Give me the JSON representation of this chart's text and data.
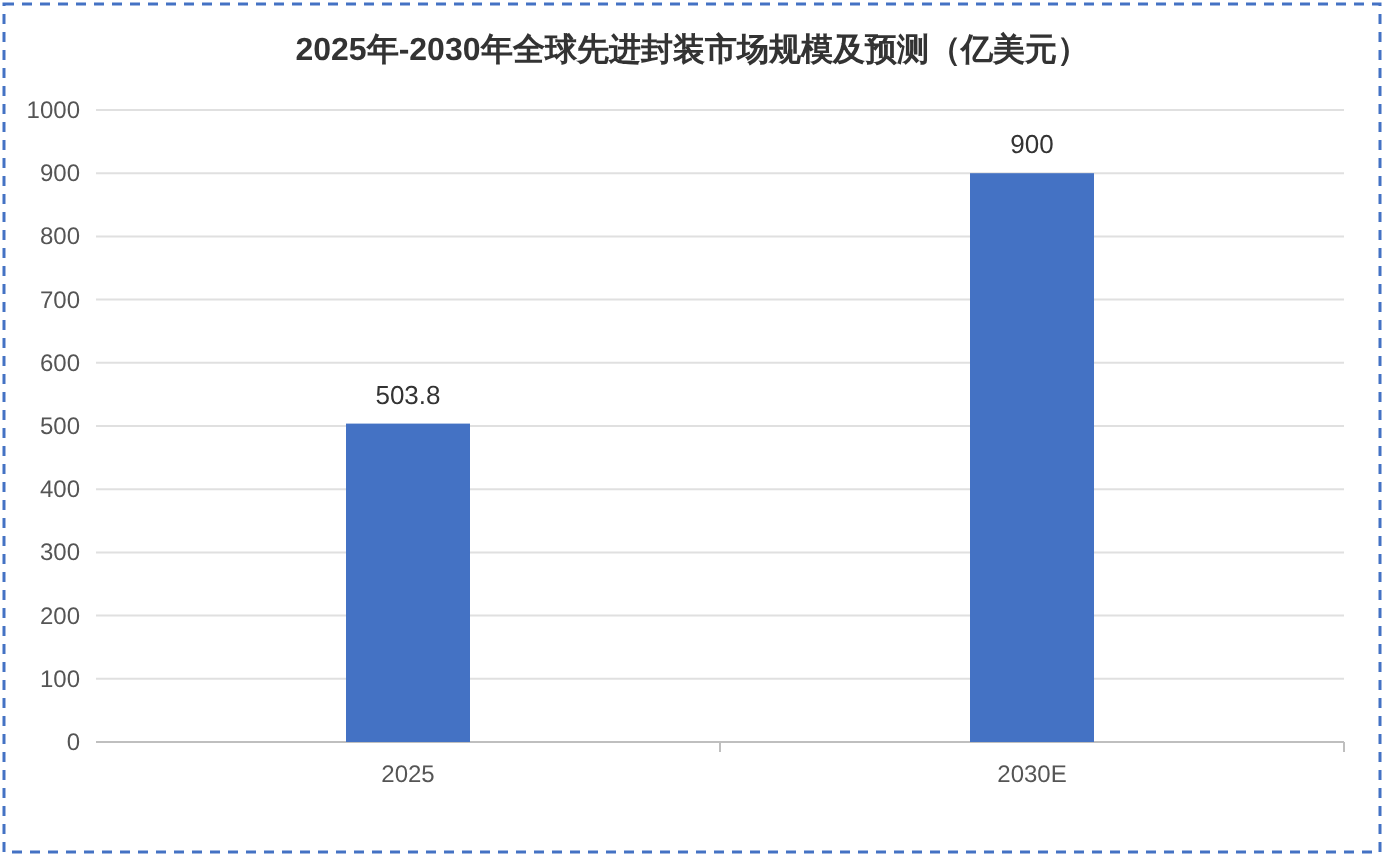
{
  "chart_data": {
    "type": "bar",
    "title": "2025年-2030年全球先进封装市场规模及预测（亿美元）",
    "categories": [
      "2025",
      "2030E"
    ],
    "values": [
      503.8,
      900
    ],
    "color": "#4472c4",
    "ylim": [
      0,
      1000
    ],
    "yticks": [
      0,
      100,
      200,
      300,
      400,
      500,
      600,
      700,
      800,
      900,
      1000
    ],
    "grid": "y",
    "data_labels": true
  }
}
